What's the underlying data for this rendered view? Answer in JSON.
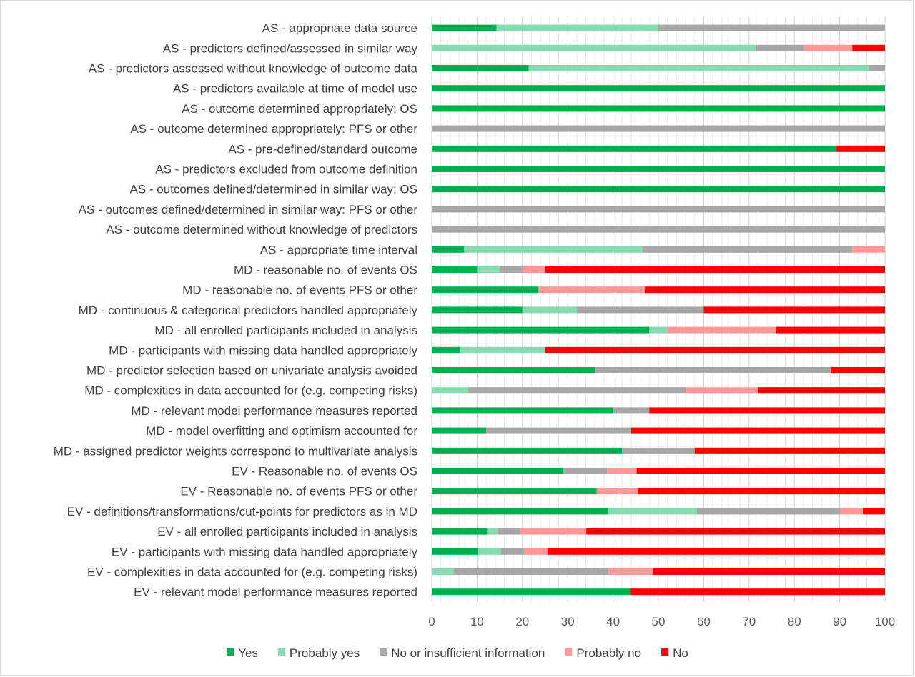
{
  "chart_data": {
    "type": "bar",
    "stacked": true,
    "orientation": "horizontal",
    "title": "",
    "xlabel": "",
    "ylabel": "",
    "xlim": [
      0,
      100
    ],
    "xticks": [
      0,
      10,
      20,
      30,
      40,
      50,
      60,
      70,
      80,
      90,
      100
    ],
    "grid": true,
    "legend_position": "bottom",
    "categories": [
      "AS - appropriate data source",
      "AS - predictors defined/assessed in similar way",
      "AS - predictors assessed without knowledge of outcome data",
      "AS - predictors available at time of model use",
      "AS - outcome determined appropriately: OS",
      "AS - outcome determined appropriately: PFS or other",
      "AS - pre-defined/standard outcome",
      "AS - predictors excluded from outcome definition",
      "AS - outcomes defined/determined in similar way: OS",
      "AS - outcomes defined/determined in similar way: PFS or other",
      "AS - outcome determined without knowledge of predictors",
      "AS - appropriate time interval",
      "MD - reasonable no. of events OS",
      "MD - reasonable no. of events PFS or other",
      "MD - continuous & categorical predictors handled appropriately",
      "MD - all enrolled participants included in analysis",
      "MD - participants with missing data handled appropriately",
      "MD - predictor selection based on univariate analysis avoided",
      "MD - complexities in data accounted for (e.g. competing risks)",
      "MD - relevant model performance measures reported",
      "MD - model overfitting and optimism accounted for",
      "MD - assigned predictor weights correspond to multivariate analysis",
      "EV - Reasonable no. of events OS",
      "EV - Reasonable no. of events PFS or other",
      "EV - definitions/transformations/cut-points for predictors as in MD",
      "EV - all enrolled participants included in analysis",
      "EV - participants with missing data handled appropriately",
      "EV - complexities in data accounted for (e.g. competing risks)",
      "EV - relevant model performance measures reported"
    ],
    "series": [
      {
        "name": "Yes",
        "color": "#00b050",
        "values": [
          14.3,
          0,
          21.4,
          100,
          100,
          0,
          89.3,
          100,
          100,
          0,
          0,
          7.1,
          10,
          23.5,
          20,
          48,
          6.3,
          36,
          0,
          40,
          12,
          42,
          29,
          36.4,
          39,
          12.2,
          10.2,
          0,
          43.9
        ]
      },
      {
        "name": "Probably yes",
        "color": "#86dbb0",
        "values": [
          35.7,
          71.4,
          75,
          0,
          0,
          0,
          0,
          0,
          0,
          0,
          0,
          39.3,
          5,
          0,
          12,
          4,
          18.7,
          0,
          8,
          0,
          0,
          0,
          0,
          0,
          19.5,
          2.4,
          5.1,
          4.9,
          0
        ]
      },
      {
        "name": "No or insufficient information",
        "color": "#a6a6a6",
        "values": [
          50,
          10.7,
          3.6,
          0,
          0,
          100,
          0,
          0,
          0,
          100,
          100,
          46.4,
          5,
          0,
          28,
          0,
          0,
          52,
          48,
          8,
          32,
          16,
          9.7,
          0,
          31.7,
          4.9,
          5.1,
          34.1,
          0
        ]
      },
      {
        "name": "Probably no",
        "color": "#ff9999",
        "values": [
          0,
          10.7,
          0,
          0,
          0,
          0,
          0,
          0,
          0,
          0,
          0,
          7.2,
          5,
          23.5,
          0,
          24,
          0,
          0,
          16,
          0,
          0,
          0,
          6.5,
          9.1,
          4.9,
          14.6,
          5.1,
          9.8,
          0
        ]
      },
      {
        "name": "No",
        "color": "#ff0000",
        "values": [
          0,
          7.2,
          0,
          0,
          0,
          0,
          10.7,
          0,
          0,
          0,
          0,
          0,
          75,
          53,
          40,
          24,
          75,
          12,
          28,
          52,
          56,
          42,
          54.8,
          54.5,
          4.9,
          65.9,
          74.5,
          51.2,
          56.1
        ]
      }
    ]
  }
}
